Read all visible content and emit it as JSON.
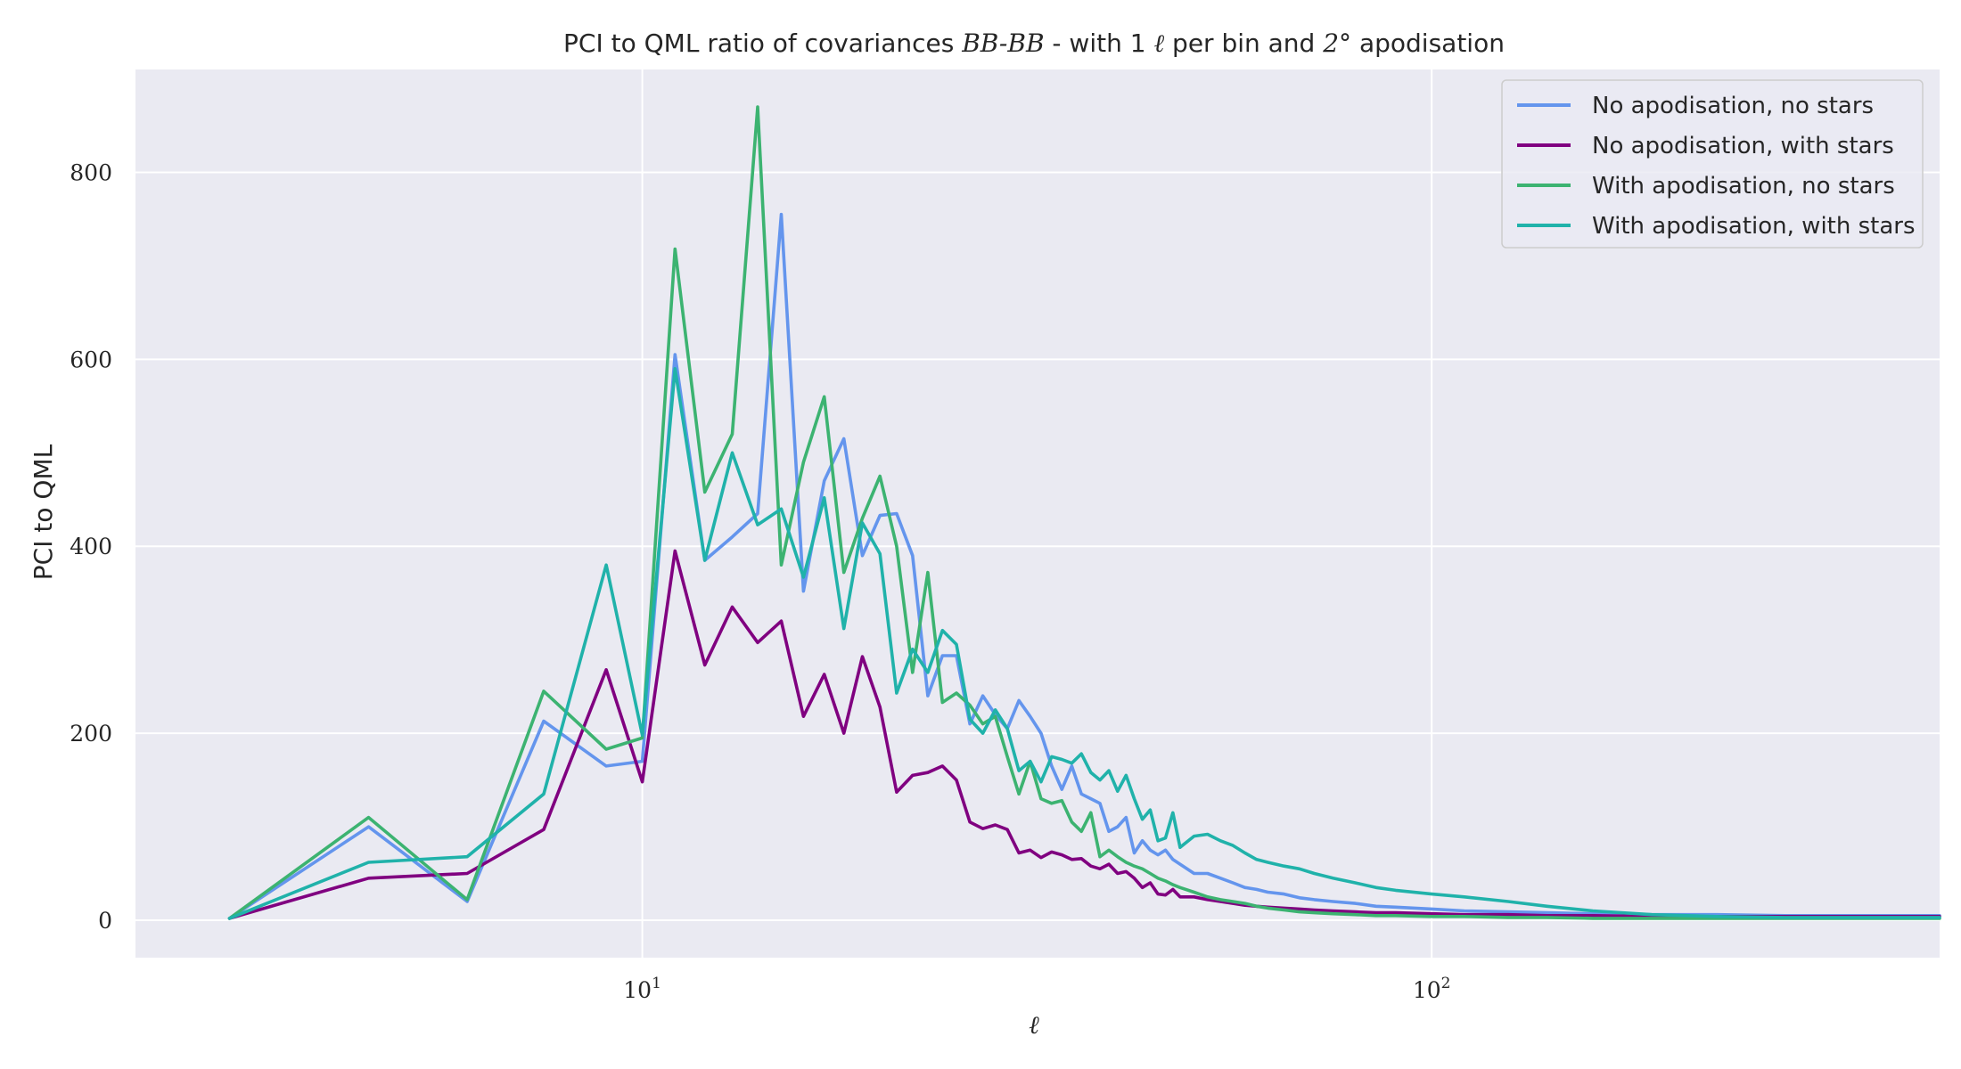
{
  "chart_data": {
    "type": "line",
    "title_parts": {
      "prefix": "PCI to QML ratio of covariances ",
      "math": "BB-BB",
      "middle": " - with 1 ",
      "ell": "ℓ",
      "suffix_a": " per bin and ",
      "deg": "2°",
      "suffix_b": " apodisation"
    },
    "xlabel": "ℓ",
    "ylabel": "PCI to QML",
    "xscale": "log",
    "xlim": [
      2.28,
      440
    ],
    "ylim": [
      -40,
      910
    ],
    "yticks": [
      0,
      200,
      400,
      600,
      800
    ],
    "ytick_labels": [
      "0",
      "200",
      "400",
      "600",
      "800"
    ],
    "xticks": [
      10,
      100
    ],
    "xtick_labels": [
      "10",
      "100"
    ],
    "xtick_label_parts": [
      {
        "base": "10",
        "exp": "1"
      },
      {
        "base": "10",
        "exp": "2"
      }
    ],
    "grid": true,
    "background": "#eaeaf2",
    "legend_position": "top-right",
    "series": [
      {
        "name": "No apodisation, no stars",
        "color": "#6495ed",
        "points": [
          [
            3,
            2
          ],
          [
            4.5,
            100
          ],
          [
            6,
            20
          ],
          [
            7.5,
            213
          ],
          [
            9,
            165
          ],
          [
            10,
            170
          ],
          [
            11,
            605
          ],
          [
            12,
            385
          ],
          [
            13,
            410
          ],
          [
            14,
            435
          ],
          [
            15,
            755
          ],
          [
            16,
            352
          ],
          [
            17,
            470
          ],
          [
            18,
            515
          ],
          [
            19,
            390
          ],
          [
            20,
            433
          ],
          [
            21,
            435
          ],
          [
            22,
            390
          ],
          [
            23,
            240
          ],
          [
            24,
            283
          ],
          [
            25,
            283
          ],
          [
            26,
            210
          ],
          [
            27,
            240
          ],
          [
            28,
            220
          ],
          [
            29,
            205
          ],
          [
            30,
            235
          ],
          [
            31,
            218
          ],
          [
            32,
            200
          ],
          [
            33,
            165
          ],
          [
            34,
            140
          ],
          [
            35,
            165
          ],
          [
            36,
            135
          ],
          [
            37,
            130
          ],
          [
            38,
            125
          ],
          [
            39,
            95
          ],
          [
            40,
            100
          ],
          [
            41,
            110
          ],
          [
            42,
            72
          ],
          [
            43,
            85
          ],
          [
            44,
            75
          ],
          [
            45,
            70
          ],
          [
            46,
            75
          ],
          [
            47,
            65
          ],
          [
            48,
            60
          ],
          [
            50,
            50
          ],
          [
            52,
            50
          ],
          [
            54,
            45
          ],
          [
            56,
            40
          ],
          [
            58,
            35
          ],
          [
            60,
            33
          ],
          [
            62,
            30
          ],
          [
            65,
            28
          ],
          [
            68,
            24
          ],
          [
            71,
            22
          ],
          [
            75,
            20
          ],
          [
            80,
            18
          ],
          [
            85,
            15
          ],
          [
            90,
            14
          ],
          [
            100,
            12
          ],
          [
            110,
            10
          ],
          [
            125,
            9
          ],
          [
            140,
            8
          ],
          [
            160,
            7
          ],
          [
            190,
            6
          ],
          [
            230,
            6
          ],
          [
            280,
            5
          ],
          [
            350,
            5
          ],
          [
            440,
            5
          ]
        ]
      },
      {
        "name": "No apodisation, with stars",
        "color": "#800080",
        "points": [
          [
            3,
            2
          ],
          [
            4.5,
            45
          ],
          [
            6,
            50
          ],
          [
            7.5,
            97
          ],
          [
            9,
            268
          ],
          [
            10,
            148
          ],
          [
            11,
            395
          ],
          [
            12,
            273
          ],
          [
            13,
            335
          ],
          [
            14,
            297
          ],
          [
            15,
            320
          ],
          [
            16,
            218
          ],
          [
            17,
            263
          ],
          [
            18,
            200
          ],
          [
            19,
            282
          ],
          [
            20,
            228
          ],
          [
            21,
            137
          ],
          [
            22,
            155
          ],
          [
            23,
            158
          ],
          [
            24,
            165
          ],
          [
            25,
            150
          ],
          [
            26,
            105
          ],
          [
            27,
            98
          ],
          [
            28,
            102
          ],
          [
            29,
            97
          ],
          [
            30,
            72
          ],
          [
            31,
            75
          ],
          [
            32,
            67
          ],
          [
            33,
            73
          ],
          [
            34,
            70
          ],
          [
            35,
            65
          ],
          [
            36,
            66
          ],
          [
            37,
            58
          ],
          [
            38,
            55
          ],
          [
            39,
            60
          ],
          [
            40,
            50
          ],
          [
            41,
            52
          ],
          [
            42,
            45
          ],
          [
            43,
            35
          ],
          [
            44,
            40
          ],
          [
            45,
            28
          ],
          [
            46,
            27
          ],
          [
            47,
            33
          ],
          [
            48,
            25
          ],
          [
            50,
            25
          ],
          [
            52,
            22
          ],
          [
            54,
            20
          ],
          [
            56,
            18
          ],
          [
            58,
            16
          ],
          [
            60,
            15
          ],
          [
            62,
            14
          ],
          [
            65,
            13
          ],
          [
            68,
            12
          ],
          [
            71,
            11
          ],
          [
            75,
            10
          ],
          [
            80,
            9
          ],
          [
            85,
            8
          ],
          [
            90,
            8
          ],
          [
            100,
            7
          ],
          [
            110,
            6
          ],
          [
            125,
            6
          ],
          [
            140,
            5
          ],
          [
            160,
            5
          ],
          [
            190,
            4
          ],
          [
            230,
            4
          ],
          [
            280,
            4
          ],
          [
            350,
            4
          ],
          [
            440,
            4
          ]
        ]
      },
      {
        "name": "With apodisation, no stars",
        "color": "#3cb371",
        "points": [
          [
            3,
            2
          ],
          [
            4.5,
            110
          ],
          [
            6,
            22
          ],
          [
            7.5,
            245
          ],
          [
            9,
            183
          ],
          [
            10,
            195
          ],
          [
            11,
            718
          ],
          [
            12,
            458
          ],
          [
            13,
            520
          ],
          [
            14,
            870
          ],
          [
            15,
            380
          ],
          [
            16,
            490
          ],
          [
            17,
            560
          ],
          [
            18,
            372
          ],
          [
            19,
            430
          ],
          [
            20,
            475
          ],
          [
            21,
            400
          ],
          [
            22,
            265
          ],
          [
            23,
            372
          ],
          [
            24,
            233
          ],
          [
            25,
            243
          ],
          [
            26,
            230
          ],
          [
            27,
            210
          ],
          [
            28,
            218
          ],
          [
            29,
            175
          ],
          [
            30,
            135
          ],
          [
            31,
            170
          ],
          [
            32,
            130
          ],
          [
            33,
            125
          ],
          [
            34,
            128
          ],
          [
            35,
            105
          ],
          [
            36,
            95
          ],
          [
            37,
            115
          ],
          [
            38,
            68
          ],
          [
            39,
            75
          ],
          [
            40,
            68
          ],
          [
            41,
            62
          ],
          [
            42,
            58
          ],
          [
            43,
            55
          ],
          [
            44,
            50
          ],
          [
            45,
            45
          ],
          [
            46,
            42
          ],
          [
            47,
            38
          ],
          [
            48,
            35
          ],
          [
            50,
            30
          ],
          [
            52,
            25
          ],
          [
            54,
            22
          ],
          [
            56,
            20
          ],
          [
            58,
            18
          ],
          [
            60,
            15
          ],
          [
            62,
            13
          ],
          [
            65,
            11
          ],
          [
            68,
            9
          ],
          [
            71,
            8
          ],
          [
            75,
            7
          ],
          [
            80,
            6
          ],
          [
            85,
            5
          ],
          [
            90,
            5
          ],
          [
            100,
            4
          ],
          [
            110,
            4
          ],
          [
            125,
            3
          ],
          [
            140,
            3
          ],
          [
            160,
            2
          ],
          [
            190,
            2
          ],
          [
            230,
            2
          ],
          [
            280,
            2
          ],
          [
            350,
            2
          ],
          [
            440,
            2
          ]
        ]
      },
      {
        "name": "With apodisation, with stars",
        "color": "#20b2aa",
        "points": [
          [
            3,
            2
          ],
          [
            4.5,
            62
          ],
          [
            6,
            68
          ],
          [
            7.5,
            135
          ],
          [
            9,
            380
          ],
          [
            10,
            198
          ],
          [
            11,
            590
          ],
          [
            12,
            385
          ],
          [
            13,
            500
          ],
          [
            14,
            423
          ],
          [
            15,
            440
          ],
          [
            16,
            367
          ],
          [
            17,
            452
          ],
          [
            18,
            312
          ],
          [
            19,
            425
          ],
          [
            20,
            392
          ],
          [
            21,
            243
          ],
          [
            22,
            290
          ],
          [
            23,
            265
          ],
          [
            24,
            310
          ],
          [
            25,
            295
          ],
          [
            26,
            215
          ],
          [
            27,
            200
          ],
          [
            28,
            225
          ],
          [
            29,
            205
          ],
          [
            30,
            160
          ],
          [
            31,
            170
          ],
          [
            32,
            148
          ],
          [
            33,
            175
          ],
          [
            34,
            172
          ],
          [
            35,
            168
          ],
          [
            36,
            178
          ],
          [
            37,
            158
          ],
          [
            38,
            150
          ],
          [
            39,
            160
          ],
          [
            40,
            138
          ],
          [
            41,
            155
          ],
          [
            42,
            130
          ],
          [
            43,
            108
          ],
          [
            44,
            118
          ],
          [
            45,
            85
          ],
          [
            46,
            88
          ],
          [
            47,
            115
          ],
          [
            48,
            78
          ],
          [
            50,
            90
          ],
          [
            52,
            92
          ],
          [
            54,
            85
          ],
          [
            56,
            80
          ],
          [
            58,
            72
          ],
          [
            60,
            65
          ],
          [
            62,
            62
          ],
          [
            65,
            58
          ],
          [
            68,
            55
          ],
          [
            71,
            50
          ],
          [
            75,
            45
          ],
          [
            80,
            40
          ],
          [
            85,
            35
          ],
          [
            90,
            32
          ],
          [
            100,
            28
          ],
          [
            110,
            25
          ],
          [
            125,
            20
          ],
          [
            140,
            15
          ],
          [
            160,
            10
          ],
          [
            190,
            6
          ],
          [
            230,
            4
          ],
          [
            280,
            3
          ],
          [
            350,
            3
          ],
          [
            440,
            3
          ]
        ]
      }
    ]
  }
}
